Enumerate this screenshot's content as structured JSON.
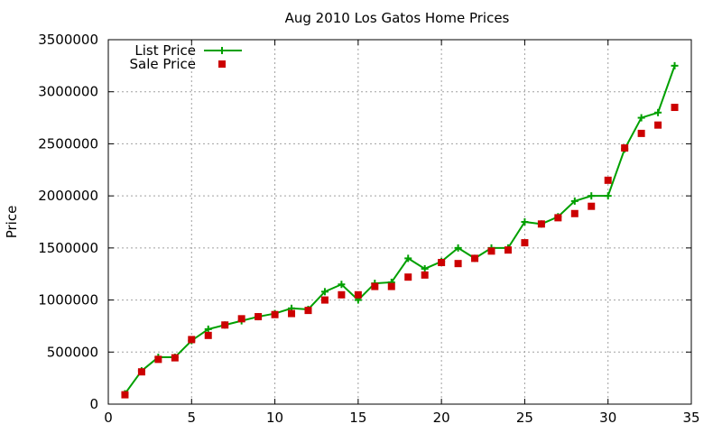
{
  "chart_data": {
    "type": "line",
    "title": "Aug 2010 Los Gatos Home Prices",
    "xlabel": "",
    "ylabel": "Price",
    "xlim": [
      0,
      35
    ],
    "ylim": [
      0,
      3500000
    ],
    "x_ticks": [
      0,
      5,
      10,
      15,
      20,
      25,
      30,
      35
    ],
    "y_ticks": [
      0,
      500000,
      1000000,
      1500000,
      2000000,
      2500000,
      3000000,
      3500000
    ],
    "grid": true,
    "legend_position": "top-left",
    "series": [
      {
        "name": "List Price",
        "style": "linespoints",
        "marker": "plus",
        "color": "#00a000",
        "x": [
          1,
          2,
          3,
          4,
          5,
          6,
          7,
          8,
          9,
          10,
          11,
          12,
          13,
          14,
          15,
          16,
          17,
          18,
          19,
          20,
          21,
          22,
          23,
          24,
          25,
          26,
          27,
          28,
          29,
          30,
          31,
          32,
          33,
          34
        ],
        "values": [
          100000,
          320000,
          450000,
          450000,
          610000,
          720000,
          760000,
          800000,
          840000,
          870000,
          920000,
          910000,
          1080000,
          1150000,
          1000000,
          1160000,
          1170000,
          1400000,
          1300000,
          1370000,
          1500000,
          1400000,
          1500000,
          1500000,
          1750000,
          1730000,
          1800000,
          1950000,
          2000000,
          2000000,
          2450000,
          2750000,
          2800000,
          3250000
        ]
      },
      {
        "name": "Sale Price",
        "style": "points",
        "marker": "square",
        "color": "#cc0000",
        "x": [
          1,
          2,
          3,
          4,
          5,
          6,
          7,
          8,
          9,
          10,
          11,
          12,
          13,
          14,
          15,
          16,
          17,
          18,
          19,
          20,
          21,
          22,
          23,
          24,
          25,
          26,
          27,
          28,
          29,
          30,
          31,
          32,
          33,
          34
        ],
        "values": [
          90000,
          310000,
          430000,
          445000,
          620000,
          660000,
          760000,
          820000,
          840000,
          860000,
          870000,
          900000,
          1000000,
          1050000,
          1050000,
          1130000,
          1130000,
          1220000,
          1240000,
          1360000,
          1350000,
          1400000,
          1470000,
          1480000,
          1550000,
          1730000,
          1790000,
          1830000,
          1900000,
          2150000,
          2460000,
          2600000,
          2680000,
          2850000
        ]
      }
    ]
  }
}
